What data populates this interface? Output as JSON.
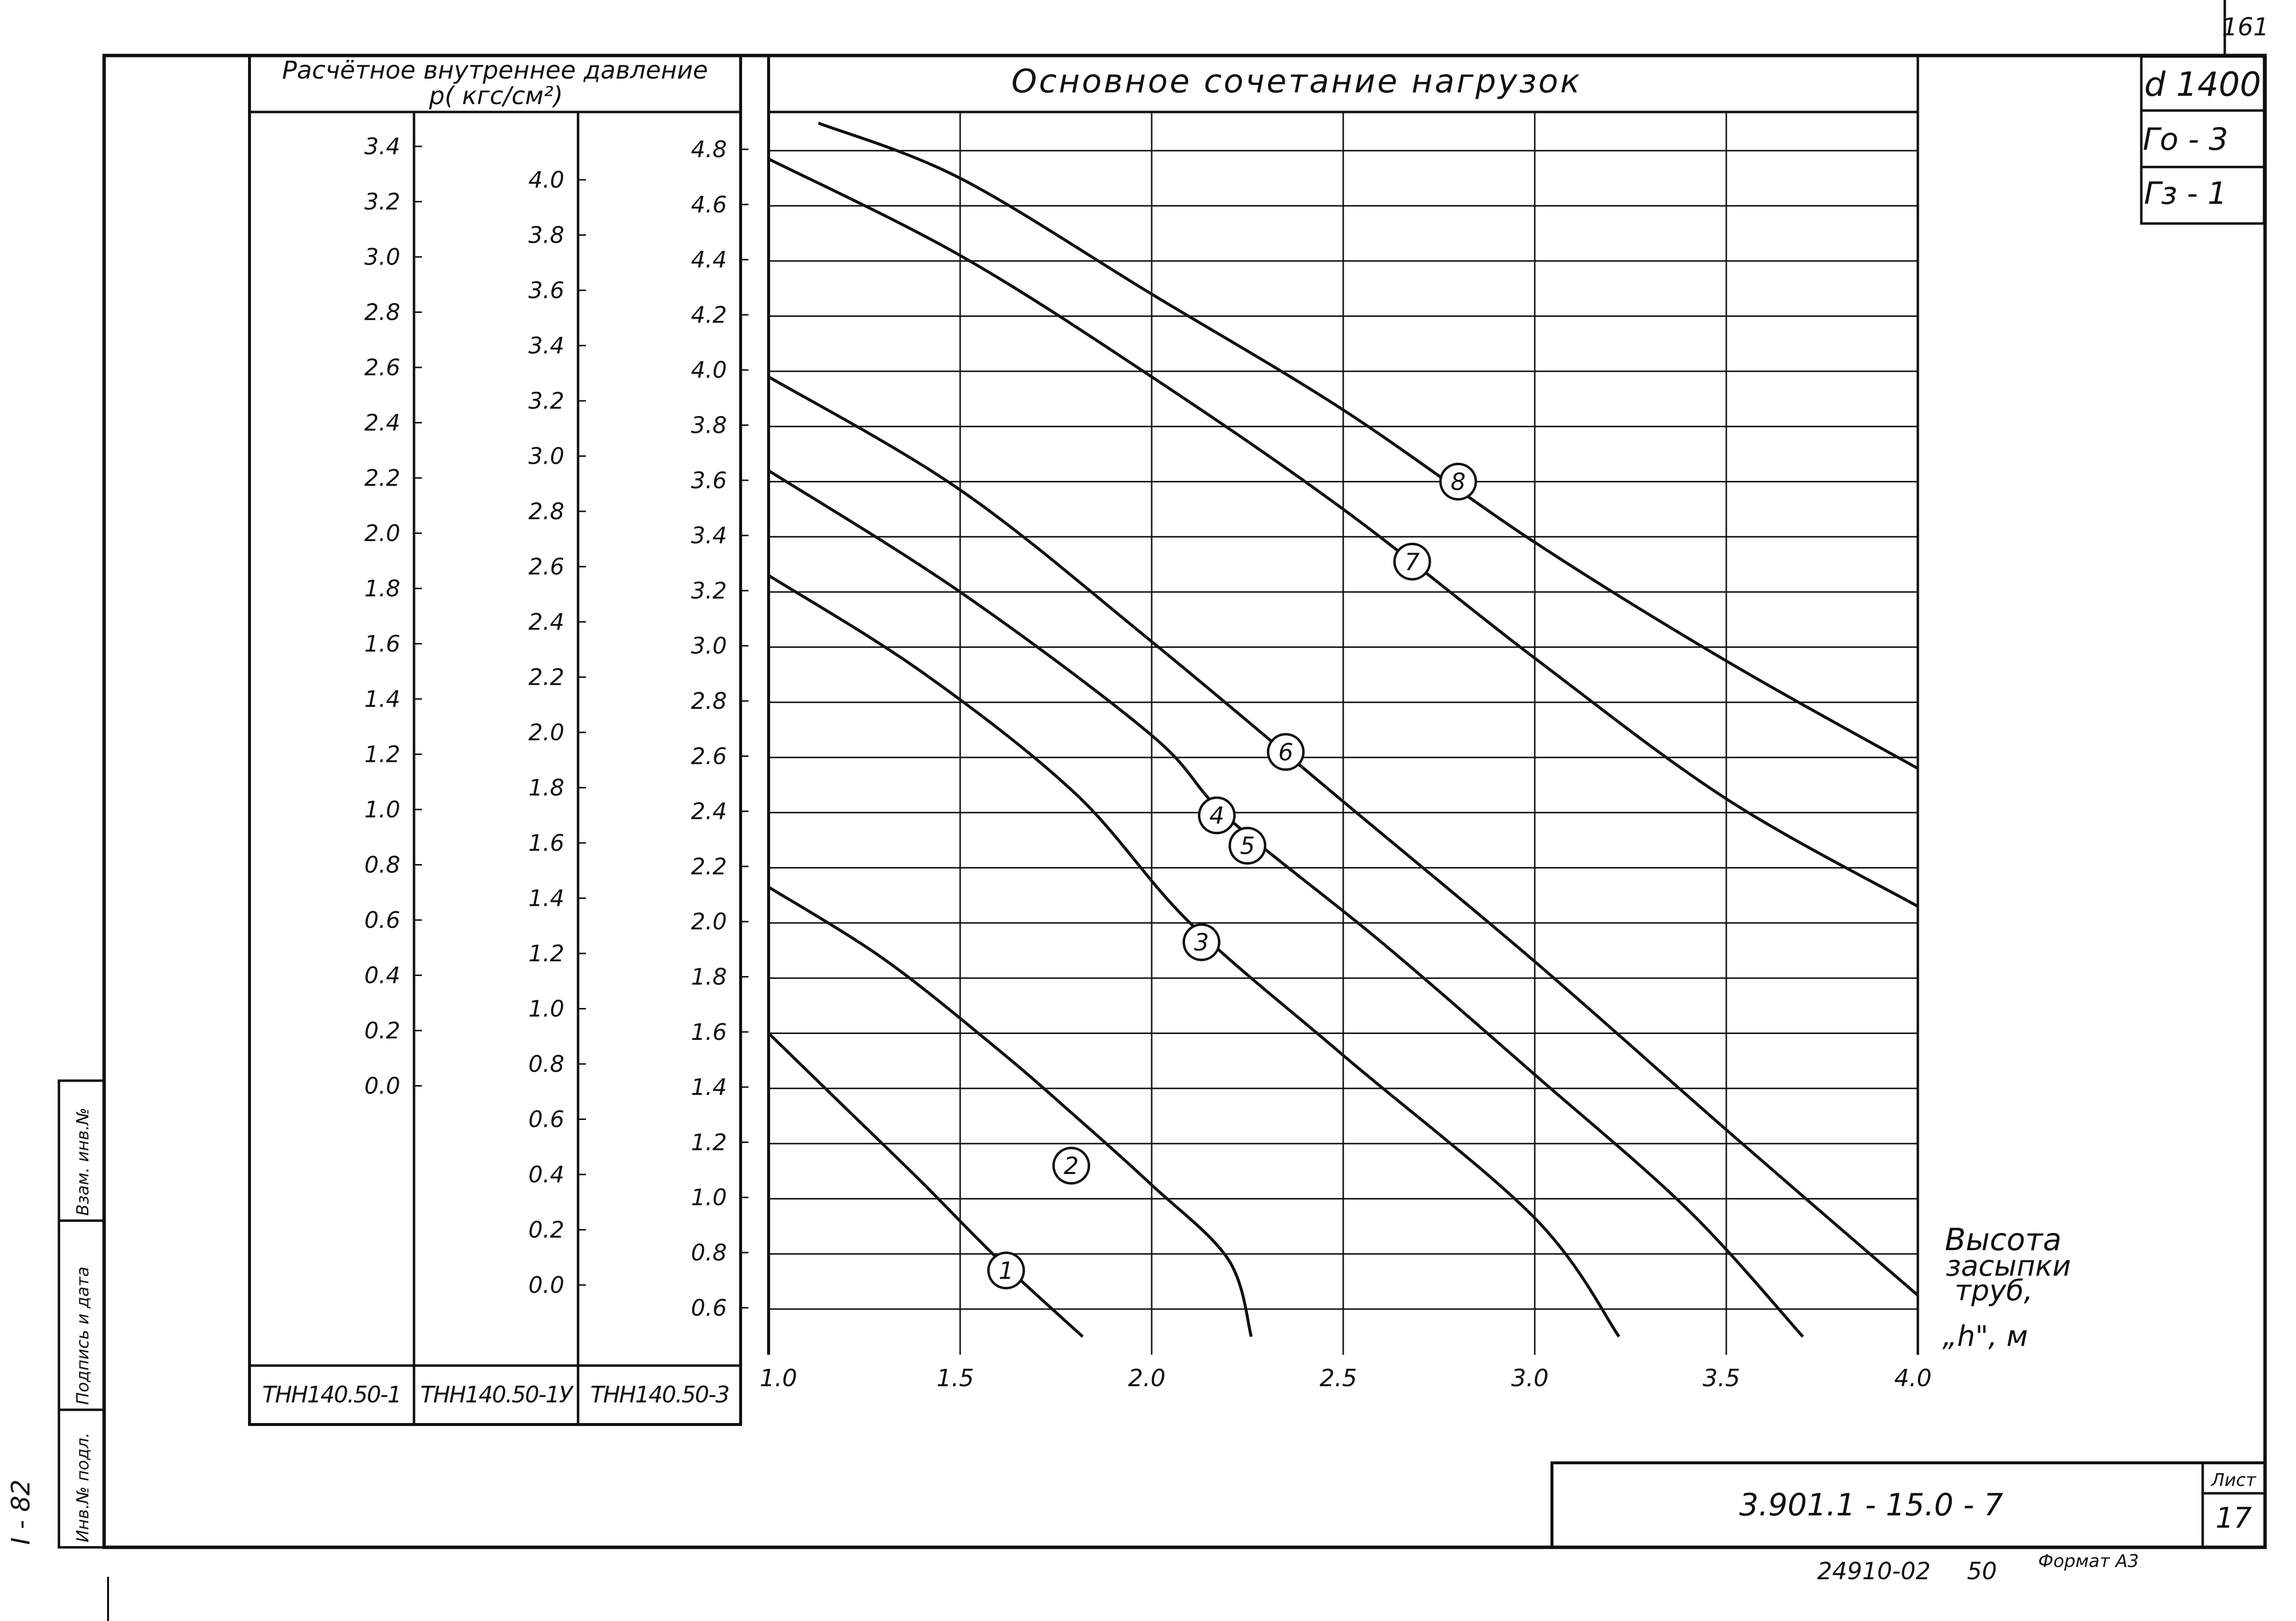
{
  "sheet": {
    "page_number": "161",
    "side_stamp": "I - 82",
    "side_labels": [
      "Инв.№ подл.",
      "Подпись и дата",
      "Взам. инв.№"
    ],
    "corner_tags": [
      "d 1400",
      "Го - 3",
      "Гз - 1"
    ],
    "doc_code": "3.901.1 - 15.0 - 7",
    "sheet_label": "Лист",
    "sheet_number": "17",
    "bottom_code": "24910-02",
    "bottom_num": "50",
    "format_label": "Формат А3"
  },
  "scales": {
    "header_line1": "Расчётное внутреннее давление",
    "header_line2": "p( кгс/см²)",
    "columns": [
      {
        "name": "ТНН140.50-1",
        "ticks": [
          "3.4",
          "3.2",
          "3.0",
          "2.8",
          "2.6",
          "2.4",
          "2.2",
          "2.0",
          "1.8",
          "1.6",
          "1.4",
          "1.2",
          "1.0",
          "0.8",
          "0.6",
          "0.4",
          "0.2",
          "0.0"
        ]
      },
      {
        "name": "ТНН140.50-1У",
        "ticks": [
          "4.0",
          "3.8",
          "3.6",
          "3.4",
          "3.2",
          "3.0",
          "2.8",
          "2.6",
          "2.4",
          "2.2",
          "2.0",
          "1.8",
          "1.6",
          "1.4",
          "1.2",
          "1.0",
          "0.8",
          "0.6",
          "0.4",
          "0.2",
          "0.0"
        ]
      },
      {
        "name": "ТНН140.50-3",
        "ticks": [
          "4.8",
          "4.6",
          "4.4",
          "4.2",
          "4.0",
          "3.8",
          "3.6",
          "3.4",
          "3.2",
          "3.0",
          "2.8",
          "2.6",
          "2.4",
          "2.2",
          "2.0",
          "1.8",
          "1.6",
          "1.4",
          "1.2",
          "1.0",
          "0.8",
          "0.6"
        ]
      }
    ]
  },
  "chart_data": {
    "type": "line",
    "title": "Основное сочетание нагрузок",
    "xlabel": "Высота засыпки труб, „h\", м",
    "xlabel_lines": [
      "Высота",
      "засыпки",
      "труб,",
      "„h\", м"
    ],
    "x_ticks": [
      "1.0",
      "1.5",
      "2.0",
      "2.5",
      "3.0",
      "3.5",
      "4.0"
    ],
    "xlim": [
      1.0,
      4.0
    ],
    "ylim": [
      0.5,
      4.9
    ],
    "y_gridlines": [
      0.6,
      0.8,
      1.0,
      1.2,
      1.4,
      1.6,
      1.8,
      2.0,
      2.2,
      2.4,
      2.6,
      2.8,
      3.0,
      3.2,
      3.4,
      3.6,
      3.8,
      4.0,
      4.2,
      4.4,
      4.6,
      4.8
    ],
    "y_units": "p (кгс/см²), шкала ТНН140.50-3",
    "grid": true,
    "series": [
      {
        "name": "1",
        "label_at": [
          1.62,
          0.74
        ],
        "points": [
          [
            1.0,
            1.6
          ],
          [
            1.2,
            1.33
          ],
          [
            1.4,
            1.06
          ],
          [
            1.6,
            0.78
          ],
          [
            1.82,
            0.5
          ]
        ]
      },
      {
        "name": "2",
        "label_at": [
          1.79,
          1.12
        ],
        "points": [
          [
            1.0,
            2.13
          ],
          [
            1.3,
            1.87
          ],
          [
            1.6,
            1.54
          ],
          [
            1.8,
            1.3
          ],
          [
            2.0,
            1.05
          ],
          [
            2.2,
            0.78
          ],
          [
            2.26,
            0.5
          ]
        ]
      },
      {
        "name": "3",
        "label_at": [
          2.13,
          1.93
        ],
        "points": [
          [
            1.0,
            3.26
          ],
          [
            1.4,
            2.91
          ],
          [
            1.8,
            2.47
          ],
          [
            2.1,
            2.0
          ],
          [
            2.5,
            1.52
          ],
          [
            3.0,
            0.93
          ],
          [
            3.22,
            0.5
          ]
        ]
      },
      {
        "name": "4",
        "label_at": [
          2.17,
          2.39
        ],
        "points": [
          [
            1.0,
            3.64
          ],
          [
            1.5,
            3.2
          ],
          [
            2.0,
            2.68
          ],
          [
            2.2,
            2.38
          ],
          [
            2.6,
            1.93
          ],
          [
            3.0,
            1.45
          ],
          [
            3.4,
            0.96
          ],
          [
            3.7,
            0.5
          ]
        ]
      },
      {
        "name": "5",
        "label_at": [
          2.25,
          2.28
        ],
        "points": [
          [
            1.0,
            3.64
          ],
          [
            1.5,
            3.2
          ],
          [
            2.0,
            2.68
          ],
          [
            2.2,
            2.38
          ],
          [
            2.6,
            1.93
          ],
          [
            3.0,
            1.45
          ],
          [
            3.4,
            0.96
          ],
          [
            3.7,
            0.5
          ]
        ]
      },
      {
        "name": "6",
        "label_at": [
          2.35,
          2.62
        ],
        "points": [
          [
            1.0,
            3.98
          ],
          [
            1.5,
            3.57
          ],
          [
            2.0,
            3.02
          ],
          [
            2.5,
            2.44
          ],
          [
            3.0,
            1.86
          ],
          [
            3.5,
            1.25
          ],
          [
            4.0,
            0.65
          ]
        ]
      },
      {
        "name": "7",
        "label_at": [
          2.68,
          3.31
        ],
        "points": [
          [
            1.0,
            4.77
          ],
          [
            1.5,
            4.42
          ],
          [
            2.0,
            3.98
          ],
          [
            2.5,
            3.5
          ],
          [
            3.0,
            2.96
          ],
          [
            3.5,
            2.45
          ],
          [
            4.0,
            2.06
          ]
        ]
      },
      {
        "name": "8",
        "label_at": [
          2.8,
          3.6
        ],
        "points": [
          [
            1.13,
            4.9
          ],
          [
            1.5,
            4.7
          ],
          [
            2.0,
            4.28
          ],
          [
            2.5,
            3.86
          ],
          [
            3.0,
            3.38
          ],
          [
            3.5,
            2.95
          ],
          [
            4.0,
            2.56
          ]
        ]
      }
    ]
  }
}
